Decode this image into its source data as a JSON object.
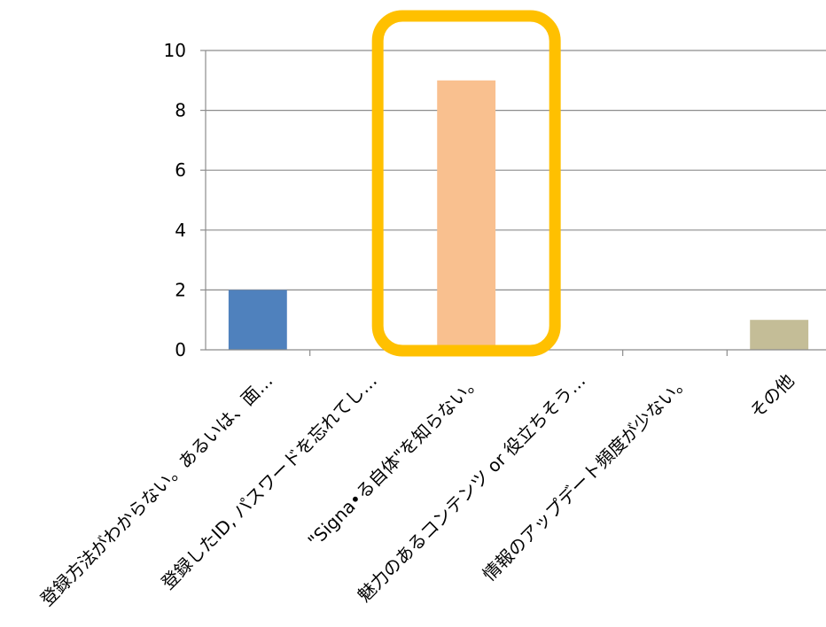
{
  "chart_data": {
    "type": "bar",
    "title": "",
    "xlabel": "",
    "ylabel": "",
    "ylim": [
      0,
      10
    ],
    "yticks": [
      0,
      2,
      4,
      6,
      8,
      10
    ],
    "grid": true,
    "legend": "none",
    "categories": [
      "登録方法がわからない。あるいは、面…",
      "登録したID, パスワードを忘れてし…",
      "\"Signa•る自体\"を知らない。",
      "魅力のあるコンテンツ or 役立ちそう…",
      "情報のアップデート頻度が少ない。",
      "その他"
    ],
    "values": [
      2,
      0,
      9,
      0,
      0,
      1
    ],
    "bar_colors": [
      "#4f81bd",
      "#c0504d",
      "#f9c08f",
      "#9bbb59",
      "#8064a2",
      "#c4bd97"
    ],
    "highlight": {
      "category_index": 2,
      "color": "#ffc000"
    }
  }
}
